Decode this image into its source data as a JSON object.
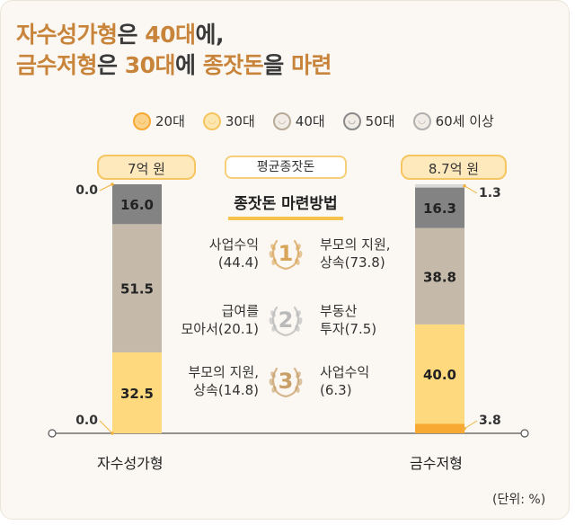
{
  "title": {
    "line1": [
      {
        "text": "자수성가형",
        "hl": true
      },
      {
        "text": "은 ",
        "hl": false
      },
      {
        "text": "40대",
        "hl": true
      },
      {
        "text": "에,",
        "hl": false
      }
    ],
    "line2": [
      {
        "text": "금수저형",
        "hl": true
      },
      {
        "text": "은 ",
        "hl": false
      },
      {
        "text": "30대",
        "hl": true
      },
      {
        "text": "에 ",
        "hl": false
      },
      {
        "text": "종잣돈",
        "hl": true
      },
      {
        "text": "을 ",
        "hl": false
      },
      {
        "text": "마련",
        "hl": true
      }
    ]
  },
  "legend": [
    {
      "label": "20대",
      "color": "#f7a934",
      "icon": "face-20s-icon"
    },
    {
      "label": "30대",
      "color": "#f5c560",
      "icon": "face-30s-icon"
    },
    {
      "label": "40대",
      "color": "#b8aa97",
      "icon": "face-40s-icon"
    },
    {
      "label": "50대",
      "color": "#8a8a8a",
      "icon": "face-50s-icon"
    },
    {
      "label": "60세 이상",
      "color": "#b0b0b0",
      "icon": "face-60s-icon"
    }
  ],
  "avg_label": "평균종잣돈",
  "method_title": "종잣돈 마련방법",
  "unit": "(단위: %)",
  "methods": [
    {
      "rank": "1",
      "left": [
        "사업수익",
        "(44.4)"
      ],
      "right": [
        "부모의 지원,",
        "상속(73.8)"
      ],
      "color": "#d9a55a"
    },
    {
      "rank": "2",
      "left": [
        "급여를",
        "모아서(20.1)"
      ],
      "right": [
        "부동산",
        "투자(7.5)"
      ],
      "color": "#b9b9b9"
    },
    {
      "rank": "3",
      "left": [
        "부모의 지원,",
        "상속(14.8)"
      ],
      "right": [
        "사업수익",
        "(6.3)"
      ],
      "color": "#c9a06a"
    }
  ],
  "chart_data": {
    "type": "bar",
    "stacked": true,
    "categories": [
      "자수성가형",
      "금수저형"
    ],
    "avg_seed_money": [
      "7억 원",
      "8.7억 원"
    ],
    "series": [
      {
        "name": "20대",
        "values": [
          0.0,
          3.8
        ],
        "color": "#f7a934"
      },
      {
        "name": "30대",
        "values": [
          32.5,
          40.0
        ],
        "color": "#fed97d"
      },
      {
        "name": "40대",
        "values": [
          51.5,
          38.8
        ],
        "color": "#c5b9a9"
      },
      {
        "name": "50대",
        "values": [
          16.0,
          16.3
        ],
        "color": "#838383"
      },
      {
        "name": "60세 이상",
        "values": [
          0.0,
          1.3
        ],
        "color": "#d9d9d9"
      }
    ],
    "ylim": [
      0,
      100
    ],
    "unit": "%"
  }
}
